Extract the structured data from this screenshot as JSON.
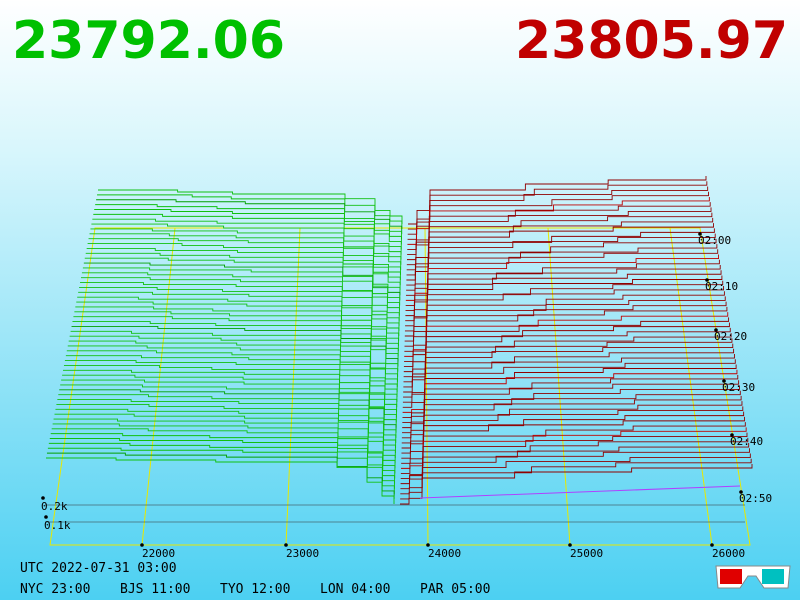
{
  "bid_price": "23792.06",
  "ask_price": "23805.97",
  "price_axis": [
    "22000",
    "23000",
    "24000",
    "25000",
    "26000"
  ],
  "volume_axis": [
    "0.2k",
    "0.1k"
  ],
  "time_axis": [
    "02:00",
    "02:10",
    "02:20",
    "02:30",
    "02:40",
    "02:50"
  ],
  "utc": "UTC 2022-07-31 03:00",
  "clocks": [
    "NYC 23:00",
    "BJS 11:00",
    "TYO 12:00",
    "LON 04:00",
    "PAR 05:00"
  ]
}
